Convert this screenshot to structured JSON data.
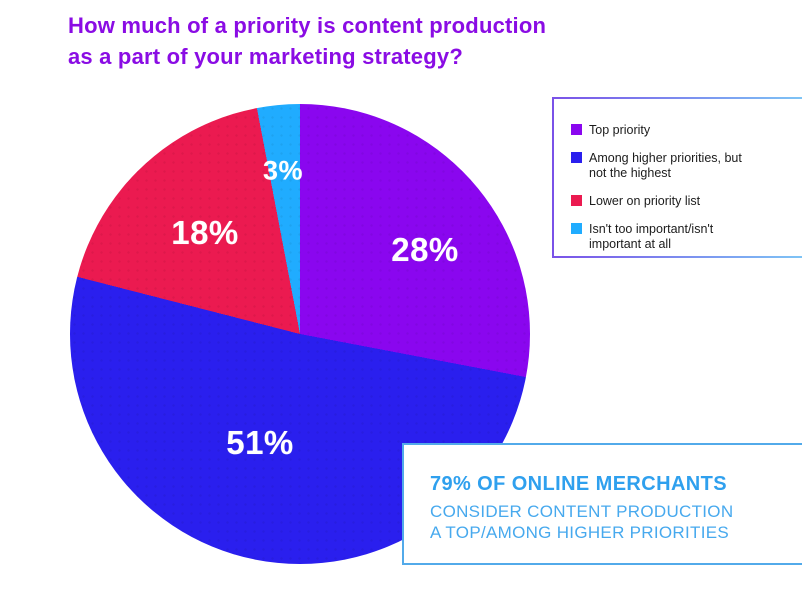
{
  "title": {
    "line1": "How much of a priority is content production",
    "line2": "as a part of your marketing strategy?"
  },
  "chart_data": {
    "type": "pie",
    "title": "How much of a priority is content production as a part of your marketing strategy?",
    "direction": "clockwise",
    "start_angle_deg": 0,
    "legend_position": "right",
    "slices": [
      {
        "label": "Top priority",
        "value": 28,
        "display": "28%",
        "color": "#8a06ef"
      },
      {
        "label": "Among higher priorities, but not the highest",
        "value": 51,
        "display": "51%",
        "color": "#2a1fee"
      },
      {
        "label": "Lower on priority list",
        "value": 18,
        "display": "18%",
        "color": "#eb1a50"
      },
      {
        "label": "Isn't too important/isn't important at all",
        "value": 3,
        "display": "3%",
        "color": "#20acff"
      }
    ]
  },
  "callout": {
    "line1": "79% OF ONLINE MERCHANTS",
    "line2": "CONSIDER CONTENT PRODUCTION",
    "line3": "A TOP/AMONG HIGHER PRIORITIES"
  },
  "colors": {
    "title_text": "#8a0ce4",
    "slice_label_text": "#ffffff",
    "legend_text": "#1c1c1c",
    "legend_border_start": "#7a52e8",
    "legend_border_end": "#7ec9f6",
    "callout_bold_text": "#2fa0ee",
    "callout_light_text": "#47a9ee",
    "callout_border": "#52aaea",
    "background": "#ffffff"
  }
}
